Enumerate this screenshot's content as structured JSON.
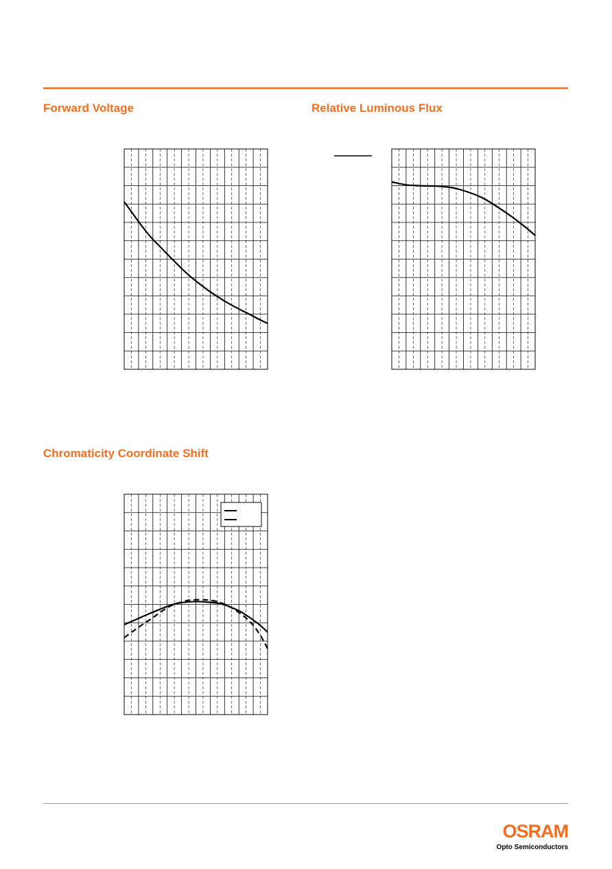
{
  "charts": [
    {
      "title": "Forward Voltage"
    },
    {
      "title": "Relative Luminous Flux"
    },
    {
      "title": "Chromaticity Coordinate Shift"
    }
  ],
  "footer": {
    "logo": "OSRAM",
    "tagline": "Opto Semiconductors"
  }
}
